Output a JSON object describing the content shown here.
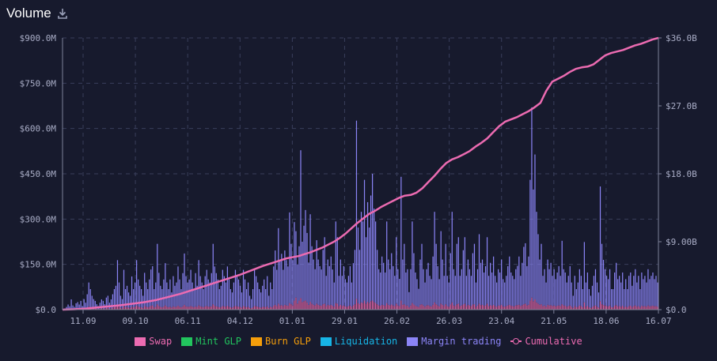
{
  "header": {
    "title": "Volume",
    "download_icon": "download-icon"
  },
  "colors": {
    "swap": "#ec6bb1",
    "mint_glp": "#22c55e",
    "burn_glp": "#f59e0b",
    "liquidation": "#17b5e6",
    "margin_trading": "#8b84f6",
    "cumulative": "#ec6bb1",
    "grid": "#3a3f5c",
    "background": "#171a2d"
  },
  "chart_data": {
    "type": "bar",
    "stacked": true,
    "left_axis": {
      "ticks": [
        0,
        150,
        300,
        450,
        600,
        750,
        900
      ],
      "tick_labels": [
        "$0.0",
        "$150.0M",
        "$300.0M",
        "$450.0M",
        "$600.0M",
        "$750.0M",
        "$900.0M"
      ],
      "ylim": [
        0,
        900
      ]
    },
    "right_axis": {
      "ticks": [
        0,
        9,
        18,
        27,
        36
      ],
      "tick_labels": [
        "$0.0",
        "$9.00B",
        "$18.0B",
        "$27.0B",
        "$36.0B"
      ],
      "ylim": [
        0,
        36
      ]
    },
    "x_tick_labels": [
      "11.09",
      "09.10",
      "06.11",
      "04.12",
      "01.01",
      "29.01",
      "26.02",
      "26.03",
      "23.04",
      "21.05",
      "18.06",
      "16.07"
    ],
    "grid": true,
    "legend_position": "bottom",
    "legend": [
      "Swap",
      "Mint GLP",
      "Burn GLP",
      "Liquidation",
      "Margin trading",
      "Cumulative"
    ],
    "margin_trading": [
      2,
      4,
      8,
      15,
      10,
      30,
      12,
      8,
      18,
      22,
      15,
      25,
      10,
      30,
      20,
      45,
      80,
      60,
      40,
      30,
      25,
      15,
      10,
      20,
      30,
      25,
      15,
      35,
      40,
      20,
      30,
      45,
      60,
      70,
      150,
      80,
      40,
      30,
      120,
      60,
      70,
      50,
      40,
      100,
      60,
      80,
      150,
      90,
      70,
      60,
      40,
      110,
      80,
      60,
      90,
      120,
      130,
      60,
      80,
      200,
      110,
      70,
      60,
      90,
      140,
      80,
      60,
      90,
      50,
      100,
      70,
      80,
      130,
      90,
      60,
      110,
      170,
      100,
      80,
      90,
      120,
      80,
      60,
      110,
      70,
      150,
      100,
      80,
      60,
      100,
      120,
      90,
      80,
      110,
      200,
      130,
      110,
      90,
      60,
      70,
      120,
      100,
      80,
      130,
      90,
      60,
      50,
      80,
      120,
      100,
      90,
      70,
      50,
      120,
      90,
      60,
      80,
      40,
      30,
      60,
      120,
      100,
      80,
      60,
      50,
      70,
      90,
      60,
      100,
      40,
      80,
      60,
      130,
      180,
      120,
      250,
      150,
      170,
      120,
      180,
      150,
      130,
      300,
      200,
      150,
      260,
      220,
      130,
      180,
      490,
      200,
      250,
      300,
      230,
      140,
      290,
      190,
      150,
      120,
      210,
      150,
      130,
      120,
      180,
      220,
      100,
      150,
      130,
      160,
      120,
      80,
      270,
      220,
      100,
      150,
      100,
      130,
      90,
      80,
      100,
      130,
      80,
      140,
      180,
      590,
      250,
      180,
      300,
      270,
      400,
      220,
      330,
      250,
      350,
      420,
      310,
      270,
      180,
      120,
      110,
      160,
      140,
      110,
      270,
      150,
      120,
      170,
      130,
      100,
      220,
      120,
      90,
      410,
      150,
      200,
      110,
      120,
      50,
      120,
      270,
      170,
      110,
      90,
      60,
      150,
      200,
      120,
      80,
      120,
      140,
      100,
      90,
      160,
      300,
      200,
      130,
      90,
      240,
      150,
      100,
      200,
      100,
      80,
      170,
      300,
      120,
      100,
      200,
      220,
      100,
      120,
      180,
      220,
      100,
      150,
      120,
      100,
      170,
      200,
      80,
      120,
      230,
      140,
      150,
      110,
      130,
      220,
      100,
      140,
      110,
      160,
      100,
      80,
      120,
      110,
      150,
      90,
      80,
      100,
      130,
      160,
      110,
      100,
      90,
      120,
      130,
      160,
      100,
      140,
      190,
      200,
      130,
      160,
      400,
      630,
      370,
      480,
      300,
      230,
      150,
      200,
      100,
      120,
      80,
      150,
      120,
      140,
      100,
      120,
      90,
      110,
      130,
      100,
      210,
      120,
      110,
      80,
      100,
      130,
      80,
      40,
      100,
      60,
      80,
      120,
      100,
      60,
      200,
      80,
      110,
      60,
      40,
      70,
      100,
      120,
      80,
      50,
      380,
      200,
      150,
      120,
      100,
      90,
      120,
      60,
      60,
      110,
      140,
      90,
      100,
      80,
      110,
      60,
      90,
      60,
      100,
      110,
      70,
      100,
      120,
      80,
      100,
      60,
      110,
      90,
      100,
      80,
      120,
      90,
      100,
      110,
      90,
      100,
      80
    ],
    "swap": [
      0,
      0,
      1,
      2,
      1,
      4,
      2,
      1,
      3,
      3,
      2,
      4,
      2,
      5,
      3,
      6,
      10,
      8,
      6,
      5,
      4,
      3,
      2,
      3,
      4,
      4,
      3,
      5,
      6,
      3,
      4,
      6,
      8,
      9,
      14,
      10,
      6,
      5,
      12,
      8,
      9,
      7,
      6,
      10,
      8,
      10,
      14,
      10,
      9,
      8,
      6,
      12,
      10,
      8,
      10,
      13,
      14,
      8,
      10,
      18,
      12,
      9,
      8,
      10,
      14,
      10,
      8,
      10,
      7,
      11,
      9,
      10,
      13,
      10,
      8,
      11,
      16,
      11,
      10,
      10,
      12,
      10,
      8,
      11,
      9,
      14,
      11,
      10,
      8,
      11,
      12,
      10,
      10,
      11,
      18,
      13,
      11,
      10,
      8,
      9,
      12,
      11,
      10,
      13,
      10,
      8,
      7,
      10,
      12,
      11,
      10,
      9,
      7,
      12,
      10,
      8,
      10,
      6,
      5,
      8,
      12,
      11,
      10,
      8,
      7,
      9,
      10,
      8,
      11,
      6,
      10,
      8,
      13,
      16,
      12,
      20,
      14,
      15,
      12,
      16,
      14,
      13,
      22,
      18,
      14,
      30,
      40,
      20,
      30,
      38,
      25,
      28,
      30,
      24,
      16,
      26,
      20,
      16,
      14,
      20,
      16,
      14,
      13,
      18,
      20,
      12,
      16,
      14,
      16,
      13,
      10,
      22,
      20,
      12,
      16,
      12,
      14,
      11,
      10,
      12,
      14,
      10,
      14,
      18,
      36,
      22,
      18,
      24,
      22,
      30,
      20,
      26,
      22,
      28,
      30,
      25,
      22,
      18,
      14,
      13,
      16,
      15,
      13,
      22,
      16,
      14,
      17,
      14,
      12,
      20,
      14,
      12,
      30,
      16,
      18,
      13,
      14,
      8,
      14,
      22,
      17,
      13,
      11,
      9,
      16,
      18,
      14,
      10,
      14,
      15,
      12,
      11,
      16,
      24,
      18,
      14,
      11,
      20,
      16,
      12,
      18,
      12,
      10,
      17,
      24,
      14,
      12,
      18,
      20,
      12,
      14,
      17,
      20,
      12,
      16,
      14,
      12,
      17,
      18,
      10,
      14,
      20,
      15,
      16,
      13,
      14,
      20,
      12,
      15,
      13,
      16,
      12,
      10,
      14,
      13,
      16,
      11,
      10,
      12,
      14,
      16,
      13,
      12,
      11,
      14,
      15,
      16,
      12,
      15,
      18,
      20,
      14,
      16,
      30,
      40,
      28,
      34,
      24,
      20,
      16,
      18,
      12,
      14,
      10,
      16,
      14,
      15,
      12,
      14,
      11,
      13,
      14,
      12,
      18,
      14,
      13,
      10,
      12,
      14,
      10,
      6,
      12,
      8,
      10,
      14,
      12,
      8,
      24,
      10,
      13,
      8,
      6,
      9,
      12,
      14,
      10,
      7,
      28,
      18,
      15,
      14,
      12,
      11,
      14,
      8,
      8,
      13,
      15,
      11,
      12,
      10,
      13,
      8,
      11,
      8,
      12,
      13,
      9,
      12,
      14,
      10,
      12,
      8,
      13,
      11,
      12,
      10,
      14,
      11,
      12,
      13,
      11,
      12,
      10
    ],
    "cumulative": [
      [
        0,
        0.0
      ],
      [
        20,
        0.05
      ],
      [
        40,
        0.15
      ],
      [
        60,
        0.3
      ],
      [
        80,
        0.45
      ],
      [
        100,
        0.6
      ],
      [
        120,
        0.8
      ],
      [
        140,
        1.0
      ],
      [
        160,
        1.3
      ],
      [
        180,
        1.7
      ],
      [
        200,
        2.1
      ],
      [
        220,
        2.6
      ],
      [
        240,
        3.1
      ],
      [
        260,
        3.6
      ],
      [
        280,
        4.1
      ],
      [
        300,
        4.6
      ],
      [
        320,
        5.2
      ],
      [
        340,
        5.8
      ],
      [
        360,
        6.3
      ],
      [
        380,
        6.8
      ],
      [
        400,
        7.1
      ],
      [
        420,
        7.6
      ],
      [
        440,
        8.2
      ],
      [
        460,
        9.0
      ],
      [
        470,
        9.5
      ],
      [
        480,
        10.1
      ],
      [
        490,
        10.8
      ],
      [
        500,
        11.5
      ],
      [
        510,
        12.1
      ],
      [
        520,
        12.7
      ],
      [
        530,
        13.1
      ],
      [
        540,
        13.6
      ],
      [
        550,
        14.0
      ],
      [
        560,
        14.4
      ],
      [
        570,
        14.8
      ],
      [
        580,
        15.1
      ],
      [
        590,
        15.2
      ],
      [
        600,
        15.5
      ],
      [
        610,
        16.1
      ],
      [
        620,
        16.9
      ],
      [
        630,
        17.7
      ],
      [
        640,
        18.6
      ],
      [
        650,
        19.4
      ],
      [
        660,
        19.9
      ],
      [
        670,
        20.2
      ],
      [
        680,
        20.6
      ],
      [
        690,
        21.0
      ],
      [
        700,
        21.6
      ],
      [
        710,
        22.1
      ],
      [
        720,
        22.7
      ],
      [
        730,
        23.5
      ],
      [
        740,
        24.3
      ],
      [
        750,
        24.9
      ],
      [
        760,
        25.2
      ],
      [
        770,
        25.5
      ],
      [
        780,
        25.9
      ],
      [
        790,
        26.3
      ],
      [
        800,
        26.8
      ],
      [
        810,
        27.4
      ],
      [
        815,
        28.2
      ],
      [
        820,
        29.0
      ],
      [
        830,
        30.2
      ],
      [
        840,
        30.6
      ],
      [
        850,
        31.0
      ],
      [
        860,
        31.5
      ],
      [
        870,
        31.9
      ],
      [
        880,
        32.1
      ],
      [
        890,
        32.2
      ],
      [
        900,
        32.5
      ],
      [
        910,
        33.1
      ],
      [
        915,
        33.4
      ],
      [
        920,
        33.7
      ],
      [
        930,
        34.0
      ],
      [
        940,
        34.2
      ],
      [
        950,
        34.4
      ],
      [
        960,
        34.7
      ],
      [
        970,
        35.0
      ],
      [
        980,
        35.2
      ],
      [
        990,
        35.5
      ],
      [
        1000,
        35.8
      ],
      [
        1010,
        36.0
      ]
    ]
  },
  "legend_items": [
    {
      "label": "Swap"
    },
    {
      "label": "Mint GLP"
    },
    {
      "label": "Burn GLP"
    },
    {
      "label": "Liquidation"
    },
    {
      "label": "Margin trading"
    },
    {
      "label": "Cumulative"
    }
  ]
}
